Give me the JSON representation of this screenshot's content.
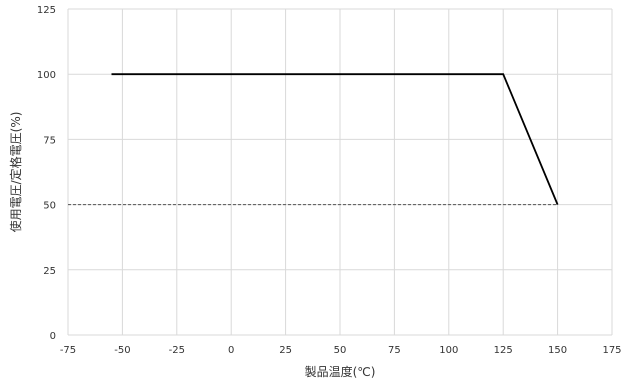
{
  "chart_data": {
    "type": "line",
    "xlabel": "製品温度(℃)",
    "ylabel": "使用電圧/定格電圧(%)",
    "xlim": [
      -75,
      175
    ],
    "ylim": [
      0,
      125
    ],
    "xticks": [
      -75,
      -50,
      -25,
      0,
      25,
      50,
      75,
      100,
      125,
      150,
      175
    ],
    "yticks": [
      0,
      25,
      50,
      75,
      100,
      125
    ],
    "grid": "vertical-and-horizontal",
    "legend": "none",
    "series": [
      {
        "style": "solid",
        "color": "#000000",
        "points": [
          [
            -55,
            100
          ],
          [
            125,
            100
          ],
          [
            150,
            50
          ]
        ]
      }
    ],
    "reference_lines": [
      {
        "style": "dashed",
        "color": "#555555",
        "y": 50,
        "x_range": [
          -75,
          150
        ]
      }
    ]
  }
}
